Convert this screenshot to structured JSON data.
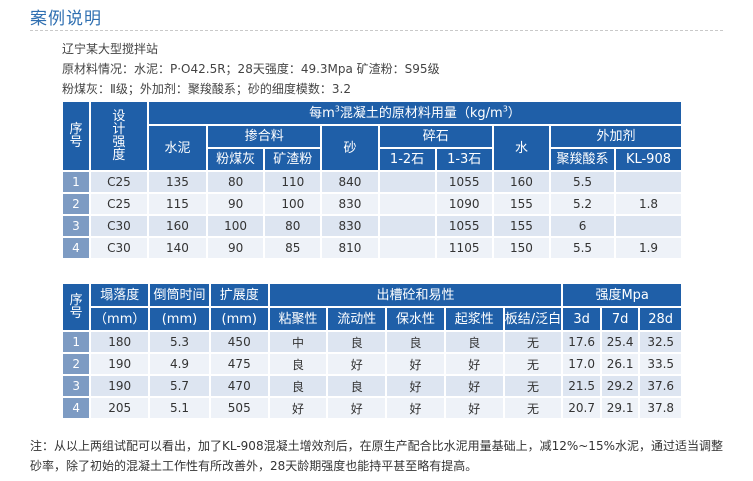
{
  "header": {
    "title": "案例说明"
  },
  "info": {
    "line1": "辽宁某大型搅拌站",
    "line2": "原材料情况：水泥：P·O42.5R；28天强度：49.3Mpa 矿渣粉：S95级",
    "line3": "粉煤灰：Ⅱ级；外加剂：聚羧酸系；砂的细度模数：3.2"
  },
  "table1": {
    "h_no": "序号",
    "h_grade": "设计强度",
    "h_group_pre": "每m",
    "h_group_sup": "3",
    "h_group_post": "混凝土的原材料用量（kg/m",
    "h_group_sup2": "3",
    "h_group_end": "）",
    "h_cement": "水泥",
    "h_admix": "掺合料",
    "h_flyash": "粉煤灰",
    "h_slag": "矿渣粉",
    "h_sand": "砂",
    "h_gravel": "碎石",
    "h_g12": "1-2石",
    "h_g13": "1-3石",
    "h_water": "水",
    "h_additive": "外加剂",
    "h_pce": "聚羧酸系",
    "h_kl": "KL-908",
    "rows": [
      {
        "no": "1",
        "grade": "C25",
        "cement": "135",
        "flyash": "80",
        "slag": "110",
        "sand": "840",
        "g12": "",
        "g13": "1055",
        "water": "160",
        "pce": "5.5",
        "kl": ""
      },
      {
        "no": "2",
        "grade": "C25",
        "cement": "115",
        "flyash": "90",
        "slag": "100",
        "sand": "830",
        "g12": "",
        "g13": "1090",
        "water": "155",
        "pce": "5.2",
        "kl": "1.8"
      },
      {
        "no": "3",
        "grade": "C30",
        "cement": "160",
        "flyash": "100",
        "slag": "80",
        "sand": "830",
        "g12": "",
        "g13": "1055",
        "water": "155",
        "pce": "6",
        "kl": ""
      },
      {
        "no": "4",
        "grade": "C30",
        "cement": "140",
        "flyash": "90",
        "slag": "85",
        "sand": "810",
        "g12": "",
        "g13": "1105",
        "water": "150",
        "pce": "5.5",
        "kl": "1.9"
      }
    ]
  },
  "table2": {
    "h_no": "序号",
    "h_slump": "塌落度",
    "h_slump_unit": "（mm）",
    "h_inv": "倒筒时间",
    "h_inv_unit": "(mm)",
    "h_spread": "扩展度",
    "h_spread_unit": "(mm)",
    "h_work": "出槽砼和易性",
    "h_cohesion": "粘聚性",
    "h_fluidity": "流动性",
    "h_retention": "保水性",
    "h_paste": "起浆性",
    "h_bleed": "板结/泛白",
    "h_strength": "强度Mpa",
    "h_3d": "3d",
    "h_7d": "7d",
    "h_28d": "28d",
    "rows": [
      {
        "no": "1",
        "slump": "180",
        "inv": "5.3",
        "spread": "450",
        "cohesion": "中",
        "fluidity": "良",
        "retention": "良",
        "paste": "良",
        "bleed": "无",
        "s3": "17.6",
        "s7": "25.4",
        "s28": "32.5"
      },
      {
        "no": "2",
        "slump": "190",
        "inv": "4.9",
        "spread": "475",
        "cohesion": "良",
        "fluidity": "好",
        "retention": "好",
        "paste": "好",
        "bleed": "无",
        "s3": "17.0",
        "s7": "26.1",
        "s28": "33.5"
      },
      {
        "no": "3",
        "slump": "190",
        "inv": "5.7",
        "spread": "470",
        "cohesion": "良",
        "fluidity": "良",
        "retention": "好",
        "paste": "好",
        "bleed": "无",
        "s3": "21.5",
        "s7": "29.2",
        "s28": "37.6"
      },
      {
        "no": "4",
        "slump": "205",
        "inv": "5.1",
        "spread": "505",
        "cohesion": "好",
        "fluidity": "好",
        "retention": "好",
        "paste": "好",
        "bleed": "无",
        "s3": "20.7",
        "s7": "29.1",
        "s28": "37.8"
      }
    ]
  },
  "note": {
    "text": "注：从以上两组试配可以看出，加了KL-908混凝土增效剂后，在原生产配合比水泥用量基础上，减12%~15%水泥，通过适当调整砂率，除了初始的混凝土工作性有所改善外，28天龄期强度也能持平甚至略有提高。"
  }
}
